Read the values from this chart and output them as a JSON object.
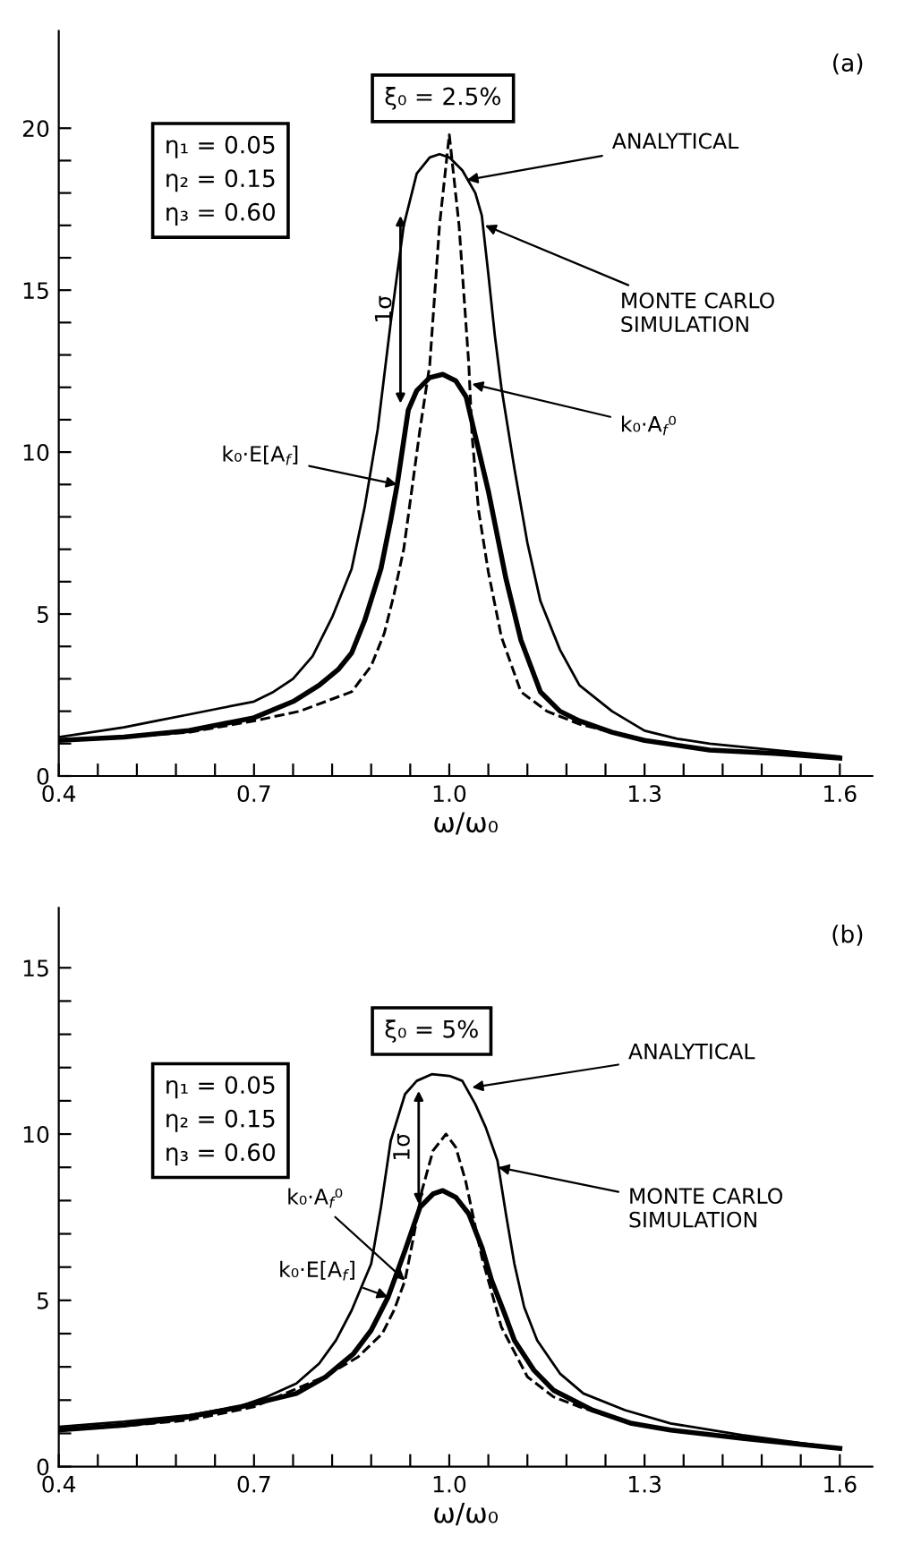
{
  "chart_data": [
    {
      "type": "line",
      "xlabel": "ω/ω₀",
      "xlim": [
        0.4,
        1.65
      ],
      "ylim": [
        0,
        23
      ],
      "tick_labels": "xy",
      "grid": false,
      "legend": false,
      "marker": "none",
      "xticks": [
        0.4,
        {
          "value": 0.46,
          "label": null
        },
        {
          "value": 0.52,
          "label": null
        },
        {
          "value": 0.58,
          "label": null
        },
        {
          "value": 0.64,
          "label": null
        },
        0.7,
        {
          "value": 0.76,
          "label": null
        },
        {
          "value": 0.82,
          "label": null
        },
        {
          "value": 0.88,
          "label": null
        },
        {
          "value": 0.94,
          "label": null
        },
        {
          "value": 1.0,
          "label": "1.0"
        },
        {
          "value": 1.06,
          "label": null
        },
        {
          "value": 1.12,
          "label": null
        },
        {
          "value": 1.18,
          "label": null
        },
        {
          "value": 1.24,
          "label": null
        },
        1.3,
        {
          "value": 1.36,
          "label": null
        },
        {
          "value": 1.42,
          "label": null
        },
        {
          "value": 1.48,
          "label": null
        },
        {
          "value": 1.54,
          "label": null
        },
        1.6
      ],
      "yticks": [
        0,
        {
          "value": 1,
          "label": null
        },
        {
          "value": 2,
          "label": null
        },
        {
          "value": 3,
          "label": null
        },
        {
          "value": 4,
          "label": null
        },
        5,
        {
          "value": 6,
          "label": null
        },
        {
          "value": 7,
          "label": null
        },
        {
          "value": 8,
          "label": null
        },
        {
          "value": 9,
          "label": null
        },
        10,
        {
          "value": 11,
          "label": null
        },
        {
          "value": 12,
          "label": null
        },
        {
          "value": 13,
          "label": null
        },
        {
          "value": 14,
          "label": null
        },
        15,
        {
          "value": 16,
          "label": null
        },
        {
          "value": 17,
          "label": null
        },
        {
          "value": 18,
          "label": null
        },
        {
          "value": 19,
          "label": null
        },
        20
      ],
      "series": [
        {
          "color": "#000000",
          "line_style": "solid",
          "x": [
            0.4,
            0.45,
            0.5,
            0.55,
            0.6,
            0.65,
            0.7,
            0.73,
            0.76,
            0.79,
            0.82,
            0.85,
            0.87,
            0.89,
            0.91,
            0.93,
            0.95,
            0.97,
            0.985,
            1.0,
            1.02,
            1.04,
            1.05,
            1.06,
            1.07,
            1.08,
            1.1,
            1.12,
            1.14,
            1.17,
            1.2,
            1.25,
            1.3,
            1.35,
            1.4,
            1.5,
            1.6
          ],
          "values": [
            1.2,
            1.35,
            1.5,
            1.7,
            1.9,
            2.1,
            2.3,
            2.6,
            3.0,
            3.7,
            4.9,
            6.4,
            8.3,
            10.7,
            14.0,
            17.0,
            18.6,
            19.1,
            19.2,
            19.1,
            18.7,
            18.0,
            17.3,
            15.5,
            13.6,
            12.0,
            9.5,
            7.2,
            5.4,
            3.9,
            2.8,
            2.0,
            1.4,
            1.15,
            1.0,
            0.8,
            0.6
          ]
        },
        {
          "color": "#000000",
          "line_style": "solid",
          "x": [
            0.4,
            0.5,
            0.6,
            0.7,
            0.76,
            0.8,
            0.83,
            0.85,
            0.87,
            0.895,
            0.91,
            0.92,
            0.937,
            0.95,
            0.97,
            0.99,
            1.01,
            1.026,
            1.04,
            1.06,
            1.087,
            1.11,
            1.14,
            1.17,
            1.2,
            1.25,
            1.3,
            1.4,
            1.5,
            1.6
          ],
          "values": [
            1.1,
            1.2,
            1.4,
            1.8,
            2.3,
            2.8,
            3.3,
            3.8,
            4.8,
            6.4,
            7.9,
            9.0,
            11.3,
            11.9,
            12.3,
            12.4,
            12.2,
            11.7,
            10.5,
            8.8,
            6.1,
            4.2,
            2.6,
            2.0,
            1.7,
            1.35,
            1.1,
            0.8,
            0.7,
            0.55
          ]
        },
        {
          "color": "#000000",
          "line_style": "dashed",
          "x": [
            0.4,
            0.5,
            0.6,
            0.7,
            0.77,
            0.85,
            0.88,
            0.9,
            0.915,
            0.93,
            0.955,
            0.97,
            0.985,
            1.0,
            1.015,
            1.03,
            1.035,
            1.045,
            1.06,
            1.08,
            1.11,
            1.15,
            1.2,
            1.3,
            1.4,
            1.5,
            1.6
          ],
          "values": [
            1.1,
            1.2,
            1.35,
            1.7,
            2.0,
            2.6,
            3.4,
            4.4,
            5.6,
            7.0,
            10.7,
            12.7,
            17.0,
            19.8,
            17.0,
            12.7,
            10.5,
            8.2,
            6.3,
            4.3,
            2.6,
            2.0,
            1.6,
            1.1,
            0.8,
            0.7,
            0.55
          ]
        }
      ],
      "annotations": [
        "(a)",
        "η₁ = 0.05\nη₂ = 0.15\nη₃ = 0.60",
        "ξ₀ = 2.5%",
        {
          "text": "ANALYTICAL",
          "x": 1.027,
          "y": 18.4
        },
        {
          "text": "MONTE CARLO\nSIMULATION",
          "x": 1.055,
          "y": 17.0
        },
        {
          "text": "k₀·E[A$_{f}$]",
          "x": 0.92,
          "y": 9.0
        },
        {
          "text": "k₀·A$_{f}$⁰",
          "x": 1.035,
          "y": 12.1
        },
        "1σ"
      ]
    },
    {
      "type": "line",
      "xlabel": "ω/ω₀",
      "xlim": [
        0.4,
        1.65
      ],
      "ylim": [
        0,
        16.8
      ],
      "tick_labels": "xy",
      "grid": false,
      "legend": false,
      "marker": "none",
      "xticks": [
        0.4,
        {
          "value": 0.46,
          "label": null
        },
        {
          "value": 0.52,
          "label": null
        },
        {
          "value": 0.58,
          "label": null
        },
        {
          "value": 0.64,
          "label": null
        },
        0.7,
        {
          "value": 0.76,
          "label": null
        },
        {
          "value": 0.82,
          "label": null
        },
        {
          "value": 0.88,
          "label": null
        },
        {
          "value": 0.94,
          "label": null
        },
        {
          "value": 1.0,
          "label": "1.0"
        },
        {
          "value": 1.06,
          "label": null
        },
        {
          "value": 1.12,
          "label": null
        },
        {
          "value": 1.18,
          "label": null
        },
        {
          "value": 1.24,
          "label": null
        },
        1.3,
        {
          "value": 1.36,
          "label": null
        },
        {
          "value": 1.42,
          "label": null
        },
        {
          "value": 1.48,
          "label": null
        },
        {
          "value": 1.54,
          "label": null
        },
        1.6
      ],
      "yticks": [
        0,
        {
          "value": 1,
          "label": null
        },
        {
          "value": 2,
          "label": null
        },
        {
          "value": 3,
          "label": null
        },
        {
          "value": 4,
          "label": null
        },
        5,
        {
          "value": 6,
          "label": null
        },
        {
          "value": 7,
          "label": null
        },
        {
          "value": 8,
          "label": null
        },
        {
          "value": 9,
          "label": null
        },
        10,
        {
          "value": 11,
          "label": null
        },
        {
          "value": 12,
          "label": null
        },
        {
          "value": 13,
          "label": null
        },
        {
          "value": 14,
          "label": null
        },
        15
      ],
      "series": [
        {
          "color": "#000000",
          "line_style": "solid",
          "x": [
            0.4,
            0.5,
            0.6,
            0.676,
            0.72,
            0.765,
            0.8,
            0.826,
            0.85,
            0.88,
            0.895,
            0.91,
            0.932,
            0.95,
            0.973,
            1.0,
            1.02,
            1.04,
            1.056,
            1.074,
            1.087,
            1.1,
            1.115,
            1.135,
            1.17,
            1.206,
            1.27,
            1.34,
            1.45,
            1.6
          ],
          "values": [
            1.2,
            1.35,
            1.55,
            1.8,
            2.1,
            2.5,
            3.1,
            3.8,
            4.7,
            6.1,
            7.8,
            9.8,
            11.2,
            11.6,
            11.8,
            11.75,
            11.6,
            10.9,
            10.2,
            9.2,
            7.6,
            6.1,
            4.8,
            3.8,
            2.8,
            2.2,
            1.7,
            1.3,
            0.95,
            0.55
          ]
        },
        {
          "color": "#000000",
          "line_style": "solid",
          "x": [
            0.4,
            0.5,
            0.587,
            0.68,
            0.765,
            0.81,
            0.853,
            0.88,
            0.906,
            0.932,
            0.955,
            0.975,
            0.99,
            1.01,
            1.03,
            1.05,
            1.065,
            1.085,
            1.1,
            1.13,
            1.16,
            1.22,
            1.28,
            1.34,
            1.45,
            1.6
          ],
          "values": [
            1.1,
            1.25,
            1.45,
            1.8,
            2.2,
            2.7,
            3.4,
            4.1,
            5.1,
            6.5,
            7.8,
            8.2,
            8.3,
            8.1,
            7.6,
            6.6,
            5.6,
            4.6,
            3.8,
            2.9,
            2.3,
            1.7,
            1.3,
            1.1,
            0.85,
            0.55
          ]
        },
        {
          "color": "#000000",
          "line_style": "dashed",
          "x": [
            0.4,
            0.5,
            0.6,
            0.7,
            0.808,
            0.86,
            0.897,
            0.915,
            0.932,
            0.945,
            0.958,
            0.975,
            0.995,
            1.01,
            1.025,
            1.05,
            1.08,
            1.12,
            1.16,
            1.2,
            1.27,
            1.34,
            1.45,
            1.6
          ],
          "values": [
            1.1,
            1.22,
            1.4,
            1.8,
            2.7,
            3.3,
            4.0,
            4.7,
            5.6,
            6.9,
            8.3,
            9.5,
            10.0,
            9.6,
            8.6,
            6.3,
            4.2,
            2.7,
            2.1,
            1.8,
            1.35,
            1.1,
            0.85,
            0.55
          ]
        }
      ],
      "annotations": [
        "(b)",
        "η₁ = 0.05\nη₂ = 0.15\nη₃ = 0.60",
        "ξ₀ = 5%",
        {
          "text": "ANALYTICAL",
          "x": 1.035,
          "y": 11.4
        },
        {
          "text": "MONTE CARLO\nSIMULATION",
          "x": 1.075,
          "y": 9.0
        },
        {
          "text": "k₀·A$_{f}$⁰",
          "x": 0.932,
          "y": 5.6
        },
        {
          "text": "k₀·E[A$_{f}$]",
          "x": 0.906,
          "y": 5.1
        },
        "1σ"
      ]
    }
  ]
}
